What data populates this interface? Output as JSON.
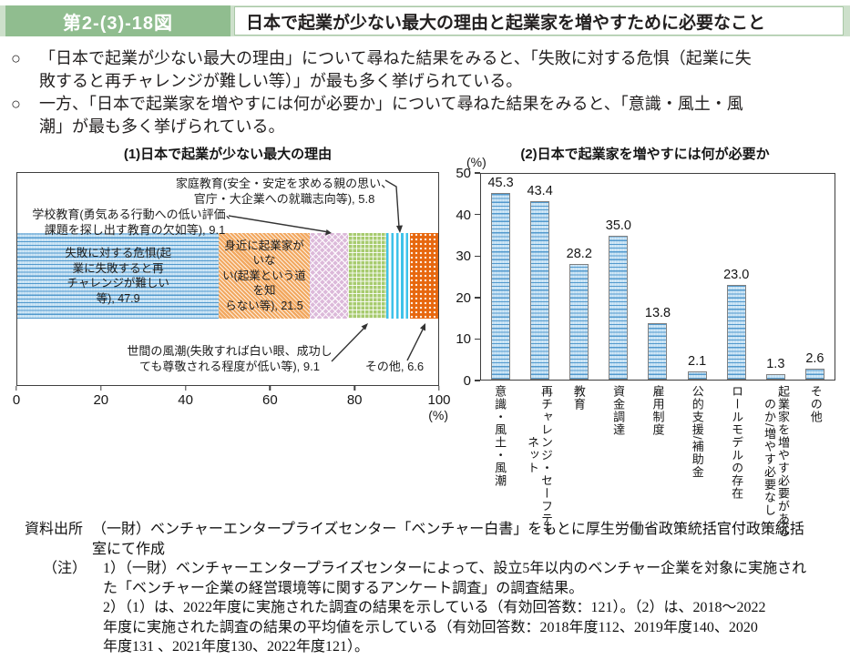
{
  "header": {
    "figure_label": "第2-(3)-18図",
    "title": "日本で起業が少ない最大の理由と起業家を増やすために必要なこと"
  },
  "bullets": {
    "marker": "○",
    "items": [
      "「日本で起業が少ない最大の理由」について尋ねた結果をみると、「失敗に対する危惧（起業に失\n敗すると再チャレンジが難しい等）」が最も多く挙げられている。",
      "一方、「日本で起業家を増やすには何が必要か」について尋ねた結果をみると、「意識・風土・風\n潮」が最も多く挙げられている。"
    ]
  },
  "chart_data": [
    {
      "type": "bar",
      "subtype": "stacked-horizontal",
      "title": "(1)日本で起業が少ない最大の理由",
      "xlabel": "(%)",
      "xlim": [
        0,
        100
      ],
      "xticks": [
        0,
        20,
        40,
        60,
        80,
        100
      ],
      "grid": false,
      "segments": [
        {
          "label": "失敗に対する危惧（起業に失敗すると再チャレンジが難しい等）",
          "value": 47.9,
          "pattern": "blue-wave",
          "placement": "inside",
          "display": "失敗に対する危惧(起\n業に失敗すると再\nチャレンジが難しい\n等), 47.9"
        },
        {
          "label": "身近に起業家がいない（起業という道を知らない等）",
          "value": 21.5,
          "pattern": "orange-diagonal",
          "placement": "inside",
          "display": "身近に起業家がいな\nい(起業という道を知\nらない等), 21.5"
        },
        {
          "label": "学校教育（勇気ある行動への低い評価、課題を探し出す教育の欠如等）",
          "value": 9.1,
          "pattern": "pink-diamond",
          "placement": "callout-top-left",
          "display": "学校教育(勇気ある行動への低い評価、\n課題を探し出す教育の欠如等), 9.1"
        },
        {
          "label": "世間の風潮（失敗すれば白い眼、成功しても尊敬される程度が低い等）",
          "value": 9.1,
          "pattern": "green-plaid",
          "placement": "callout-bottom",
          "display": "世間の風潮(失敗すれば白い眼、成功し\nても尊敬される程度が低い等), 9.1"
        },
        {
          "label": "家庭教育（安全・安定を求める親の思い、官庁・大企業への就職志向等）",
          "value": 5.8,
          "pattern": "cyan-stripes",
          "placement": "callout-top-right",
          "display": "家庭教育(安全・安定を求める親の思い、\n官庁・大企業への就職志向等), 5.8"
        },
        {
          "label": "その他",
          "value": 6.6,
          "pattern": "red-dots",
          "placement": "callout-bottom-right",
          "display": "その他, 6.6"
        }
      ]
    },
    {
      "type": "bar",
      "title": "(2)日本で起業家を増やすには何が必要か",
      "ylabel": "(%)",
      "ylim": [
        0,
        50
      ],
      "yticks": [
        0,
        10,
        20,
        30,
        40,
        50
      ],
      "grid": false,
      "bar_pattern": "blue-wave",
      "categories": [
        "意識・風土・風潮",
        "再チャレンジ・セーフティ\n　　　　ネット",
        "教育",
        "資金調達",
        "雇用制度",
        "公的支援/補助金",
        "ロールモデルの存在",
        "起業家を増やす必要がある\n　のか/増やす必要なし",
        "その他"
      ],
      "values": [
        45.3,
        43.4,
        28.2,
        35.0,
        13.8,
        2.1,
        23.0,
        1.3,
        2.6
      ]
    }
  ],
  "colors": {
    "header_strip": "#cde0cb",
    "header_label_bg": "#90bd8f",
    "blue_wave": "#c3e0f3",
    "orange_diagonal": "#f2a860",
    "pink_diamond": "#dcb9da",
    "green_plaid": "#a7cb6e",
    "cyan_stripes": "#3ec2e9",
    "red_dots": "#e7670e"
  },
  "footer": {
    "source_label": "資料出所",
    "source_text": "（一財）ベンチャーエンタープライズセンター「ベンチャー白書」をもとに厚生労働省政策統括官付政策統括\n室にて作成",
    "note_label": "（注）",
    "notes": [
      "1）（一財）ベンチャーエンタープライズセンターによって、設立5年以内のベンチャー企業を対象に実施され\nた「ベンチャー企業の経営環境等に関するアンケート調査」の調査結果。",
      "2）（1）は、2022年度に実施された調査の結果を示している（有効回答数：121）。（2）は、2018～2022\n年度に実施された調査の結果の平均値を示している（有効回答数：2018年度112、2019年度140、2020\n年度131 、2021年度130、2022年度121）。"
    ]
  }
}
